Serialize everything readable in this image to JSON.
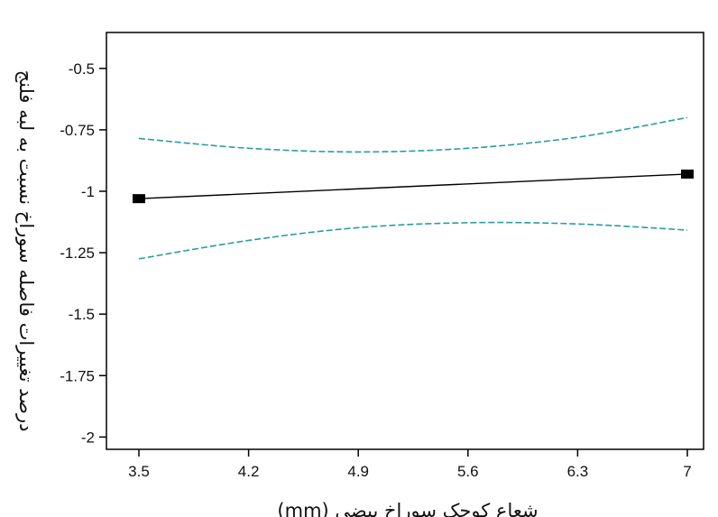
{
  "chart_data": {
    "type": "line",
    "xlabel": "شعاع کوچک سوراخ بیضی (mm)",
    "ylabel": "درصد تغییرات فاصله سوراخ نسبت به لبه فلنج",
    "x_ticks": [
      "3.5",
      "4.2",
      "4.9",
      "5.6",
      "6.3",
      "7"
    ],
    "y_ticks": [
      "-0.5",
      "-0.75",
      "-1",
      "-1.25",
      "-1.5",
      "-1.75",
      "-2"
    ],
    "xlim": [
      3.5,
      7
    ],
    "ylim": [
      -2.05,
      -0.42
    ],
    "grid": false,
    "series": [
      {
        "role": "fit",
        "color": "#000000",
        "style": "solid",
        "marker": "square",
        "x": [
          3.5,
          7
        ],
        "y": [
          -1.03,
          -0.93
        ]
      },
      {
        "role": "upper-band",
        "color": "#2a9d9f",
        "style": "dashed",
        "x": [
          3.5,
          4.2,
          4.9,
          5.6,
          6.3,
          7
        ],
        "y": [
          -0.785,
          -0.825,
          -0.84,
          -0.825,
          -0.78,
          -0.7
        ]
      },
      {
        "role": "lower-band",
        "color": "#2a9d9f",
        "style": "dashed",
        "x": [
          3.5,
          4.2,
          4.9,
          5.6,
          6.3,
          7
        ],
        "y": [
          -1.275,
          -1.2,
          -1.148,
          -1.128,
          -1.133,
          -1.158
        ]
      }
    ]
  }
}
